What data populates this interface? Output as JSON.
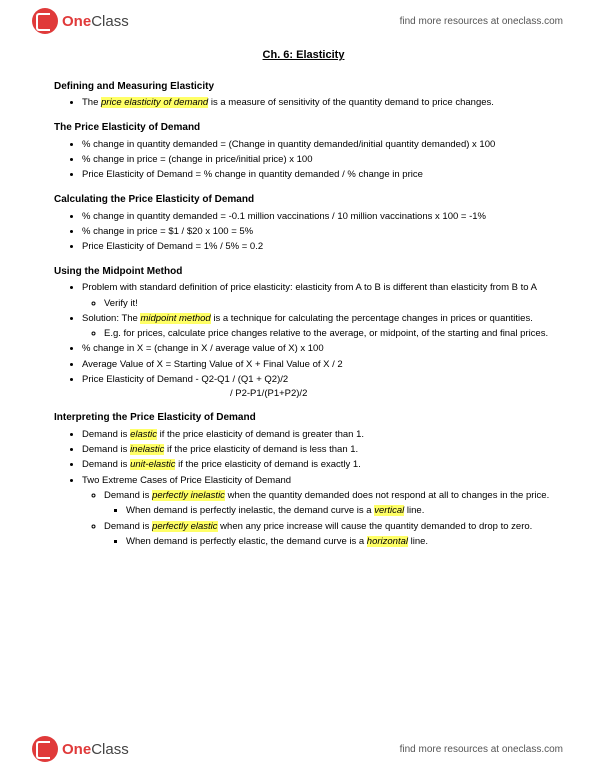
{
  "brand": {
    "one": "One",
    "class": "Class"
  },
  "resources_link": "find more resources at oneclass.com",
  "chapter_title": "Ch. 6: Elasticity",
  "s1": {
    "title": "Defining and Measuring Elasticity",
    "b1a": "The ",
    "b1b": "price elasticity of demand",
    "b1c": " is a measure of sensitivity of the quantity demand to price changes."
  },
  "s2": {
    "title": "The Price Elasticity of Demand",
    "b1": "% change in quantity demanded = (Change in quantity demanded/initial quantity demanded) x 100",
    "b2": "% change in price = (change in price/initial price) x 100",
    "b3": "Price Elasticity of Demand = % change in quantity demanded / % change in price"
  },
  "s3": {
    "title": "Calculating the Price Elasticity of Demand",
    "b1": "% change in quantity demanded = -0.1 million vaccinations / 10 million vaccinations x 100 = -1%",
    "b2": "% change in price = $1 / $20 x 100 = 5%",
    "b3": "Price Elasticity of Demand = 1% / 5% = 0.2"
  },
  "s4": {
    "title": "Using the Midpoint Method",
    "b1": "Problem with standard definition of price elasticity: elasticity from A to B is different than elasticity from B to A",
    "b1s1": "Verify it!",
    "b2a": "Solution: The ",
    "b2b": "midpoint method",
    "b2c": " is a technique for calculating the percentage changes in prices or quantities.",
    "b2s1": "E.g. for prices, calculate price changes relative to the average, or midpoint, of the starting and final prices.",
    "b3": "% change in X = (change in X / average value of X) x 100",
    "b4": "Average Value of X = Starting Value of X + Final Value of X / 2",
    "b5": "Price Elasticity of Demand - Q2-Q1 / (Q1 + Q2)/2",
    "b5line2": "/ P2-P1/(P1+P2)/2"
  },
  "s5": {
    "title": "Interpreting the Price Elasticity of Demand",
    "b1a": "Demand is ",
    "b1b": "elastic",
    "b1c": " if the price elasticity of demand is greater than 1.",
    "b2a": "Demand is ",
    "b2b": "inelastic",
    "b2c": " if the price elasticity of demand is less than 1.",
    "b3a": "Demand is ",
    "b3b": "unit-elastic",
    "b3c": " if the price elasticity of demand is exactly 1.",
    "b4": "Two Extreme Cases of Price Elasticity of Demand",
    "b4s1a": "Demand is ",
    "b4s1b": "perfectly inelastic",
    "b4s1c": " when the quantity demanded does not respond at all to changes in the price.",
    "b4s1s1a": "When demand is perfectly inelastic, the demand curve is a ",
    "b4s1s1b": "vertical",
    "b4s1s1c": " line.",
    "b4s2a": "Demand is ",
    "b4s2b": "perfectly elastic",
    "b4s2c": " when any price increase will cause the quantity demanded to drop to zero.",
    "b4s2s1a": "When demand is perfectly elastic, the demand curve is a ",
    "b4s2s1b": "horizontal",
    "b4s2s1c": " line."
  }
}
